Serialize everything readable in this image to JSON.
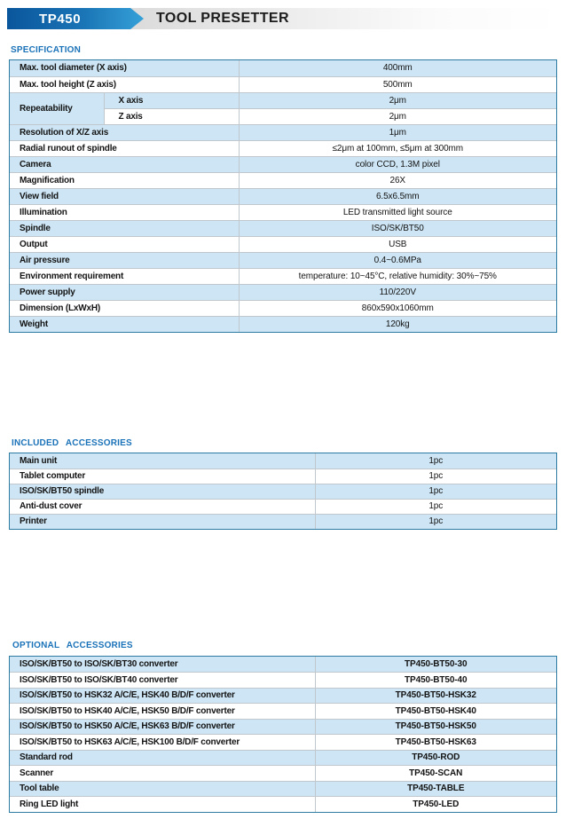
{
  "header": {
    "model": "TP450",
    "title": "TOOL PRESETTER"
  },
  "colors": {
    "accent_blue": "#1a72b8",
    "banner_gradient_start": "#0a569c",
    "banner_gradient_end": "#35a0d8",
    "row_stripe_blue": "#cde5f4",
    "table_border": "#2b7ba3"
  },
  "sections": {
    "specification": {
      "title": "SPECIFICATION",
      "rows": [
        {
          "label": "Max. tool diameter (X axis)",
          "value": "400mm"
        },
        {
          "label": "Max. tool height (Z axis)",
          "value": "500mm"
        },
        {
          "group": "Repeatability",
          "sub": "X axis",
          "value": "2μm"
        },
        {
          "sub": "Z axis",
          "value": "2μm"
        },
        {
          "label": "Resolution of X/Z axis",
          "value": "1μm"
        },
        {
          "label": "Radial runout of spindle",
          "value": "≤2μm at 100mm, ≤5μm at 300mm"
        },
        {
          "label": "Camera",
          "value": "color CCD, 1.3M pixel"
        },
        {
          "label": "Magnification",
          "value": "26X"
        },
        {
          "label": "View field",
          "value": "6.5x6.5mm"
        },
        {
          "label": "Illumination",
          "value": "LED transmitted light source"
        },
        {
          "label": "Spindle",
          "value": "ISO/SK/BT50"
        },
        {
          "label": "Output",
          "value": "USB"
        },
        {
          "label": "Air pressure",
          "value": "0.4~0.6MPa"
        },
        {
          "label": "Environment requirement",
          "value": "temperature: 10~45°C, relative humidity: 30%~75%"
        },
        {
          "label": "Power supply",
          "value": "110/220V"
        },
        {
          "label": "Dimension (LxWxH)",
          "value": "860x590x1060mm"
        },
        {
          "label": "Weight",
          "value": "120kg"
        }
      ]
    },
    "included": {
      "title": "INCLUDED ACCESSORIES",
      "rows": [
        {
          "label": "Main unit",
          "value": "1pc"
        },
        {
          "label": "Tablet computer",
          "value": "1pc"
        },
        {
          "label": "ISO/SK/BT50 spindle",
          "value": "1pc"
        },
        {
          "label": "Anti-dust cover",
          "value": "1pc"
        },
        {
          "label": "Printer",
          "value": "1pc"
        }
      ]
    },
    "optional": {
      "title": "OPTIONAL ACCESSORIES",
      "rows": [
        {
          "label": "ISO/SK/BT50 to ISO/SK/BT30 converter",
          "value": "TP450-BT50-30"
        },
        {
          "label": "ISO/SK/BT50 to ISO/SK/BT40 converter",
          "value": "TP450-BT50-40"
        },
        {
          "label": "ISO/SK/BT50 to HSK32 A/C/E, HSK40 B/D/F converter",
          "value": "TP450-BT50-HSK32"
        },
        {
          "label": "ISO/SK/BT50 to HSK40 A/C/E, HSK50 B/D/F converter",
          "value": "TP450-BT50-HSK40"
        },
        {
          "label": "ISO/SK/BT50 to HSK50 A/C/E, HSK63 B/D/F converter",
          "value": "TP450-BT50-HSK50"
        },
        {
          "label": "ISO/SK/BT50 to HSK63 A/C/E, HSK100 B/D/F converter",
          "value": "TP450-BT50-HSK63"
        },
        {
          "label": "Standard rod",
          "value": "TP450-ROD"
        },
        {
          "label": "Scanner",
          "value": "TP450-SCAN"
        },
        {
          "label": "Tool table",
          "value": "TP450-TABLE"
        },
        {
          "label": "Ring LED light",
          "value": "TP450-LED"
        }
      ]
    }
  }
}
